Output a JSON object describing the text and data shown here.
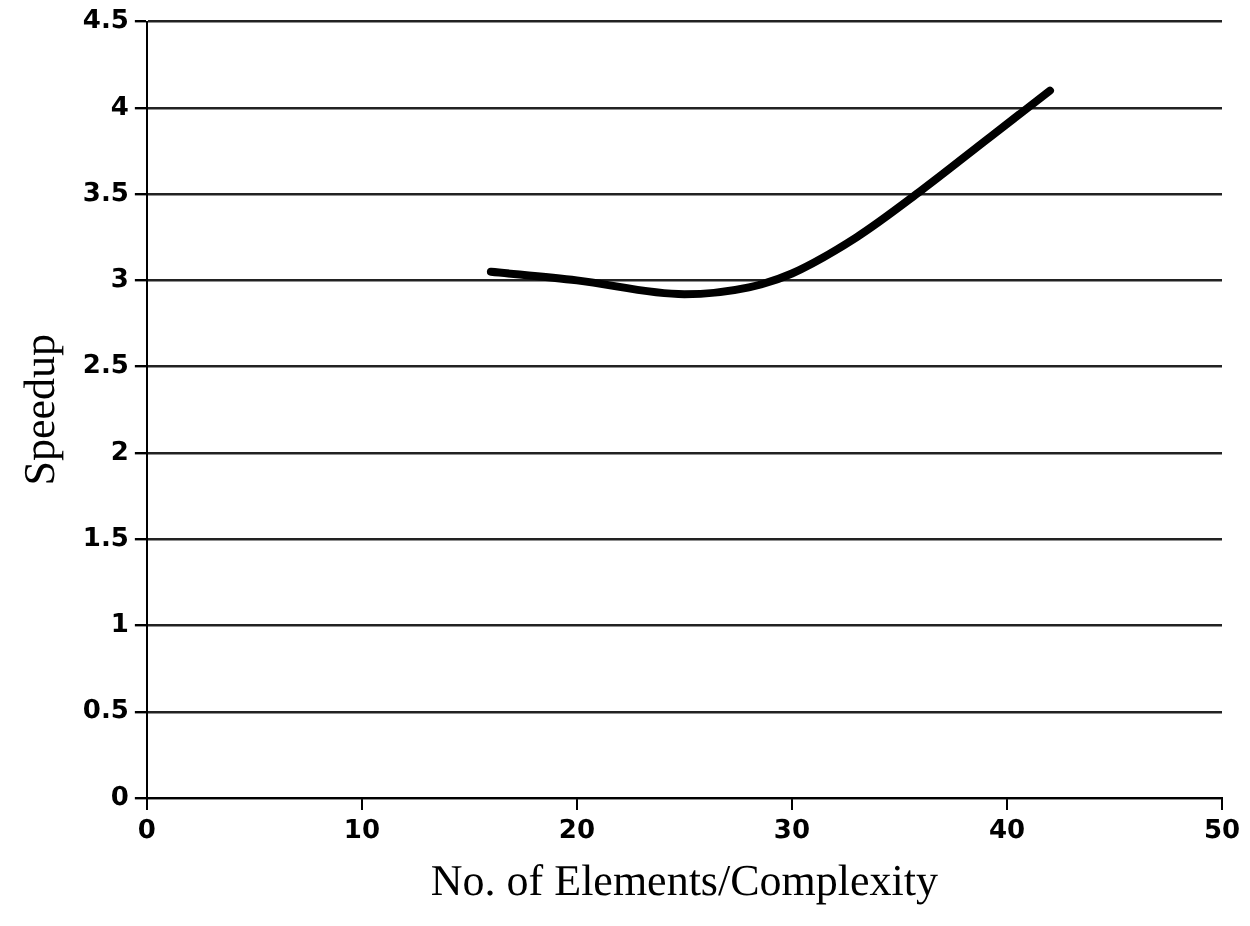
{
  "chart_data": {
    "type": "line",
    "xlabel": "No. of Elements/Complexity",
    "ylabel": "Speedup",
    "x": [
      16,
      20,
      25,
      28,
      30,
      33,
      36,
      39,
      42
    ],
    "series": [
      {
        "color": "#000000",
        "values": [
          3.05,
          3.0,
          2.92,
          2.96,
          3.04,
          3.25,
          3.52,
          3.81,
          4.1
        ]
      }
    ],
    "xlim": [
      0,
      50
    ],
    "xticks": [
      0,
      10,
      20,
      30,
      40,
      50
    ],
    "ylim": [
      0,
      4.5
    ],
    "yticks": [
      0,
      0.5,
      1,
      1.5,
      2,
      2.5,
      3,
      3.5,
      4,
      4.5
    ],
    "grid": "y",
    "legend": false,
    "marker": "none",
    "line_style": "solid"
  }
}
